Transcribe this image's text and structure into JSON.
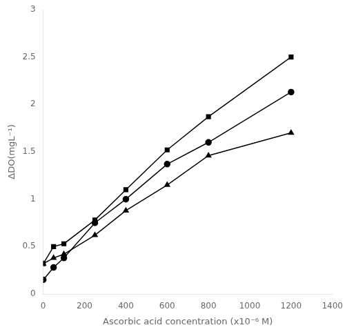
{
  "chart_data": {
    "type": "line",
    "x_label": "Ascorbic acid concentration (x10⁻⁶ M)",
    "y_label": "ΔDO(mgL⁻¹)",
    "x": [
      0,
      50,
      100,
      250,
      400,
      600,
      800,
      1200
    ],
    "series": [
      {
        "color": "#000000",
        "marker": "square",
        "values": [
          0.32,
          0.5,
          0.53,
          0.78,
          1.1,
          1.52,
          1.87,
          2.5
        ]
      },
      {
        "color": "#000000",
        "marker": "circle",
        "values": [
          0.15,
          0.28,
          0.38,
          0.75,
          1.0,
          1.37,
          1.6,
          2.13
        ]
      },
      {
        "color": "#000000",
        "marker": "triangle",
        "values": [
          0.32,
          0.38,
          0.42,
          0.62,
          0.88,
          1.15,
          1.46,
          1.7
        ]
      }
    ],
    "xlim": [
      0,
      1400
    ],
    "ylim": [
      0,
      3.0
    ],
    "xticks": [
      0,
      200,
      400,
      600,
      800,
      1000,
      1200,
      1400
    ],
    "yticks": [
      0,
      0.5,
      1.0,
      1.5,
      2.0,
      2.5,
      3.0
    ],
    "grid": false
  }
}
